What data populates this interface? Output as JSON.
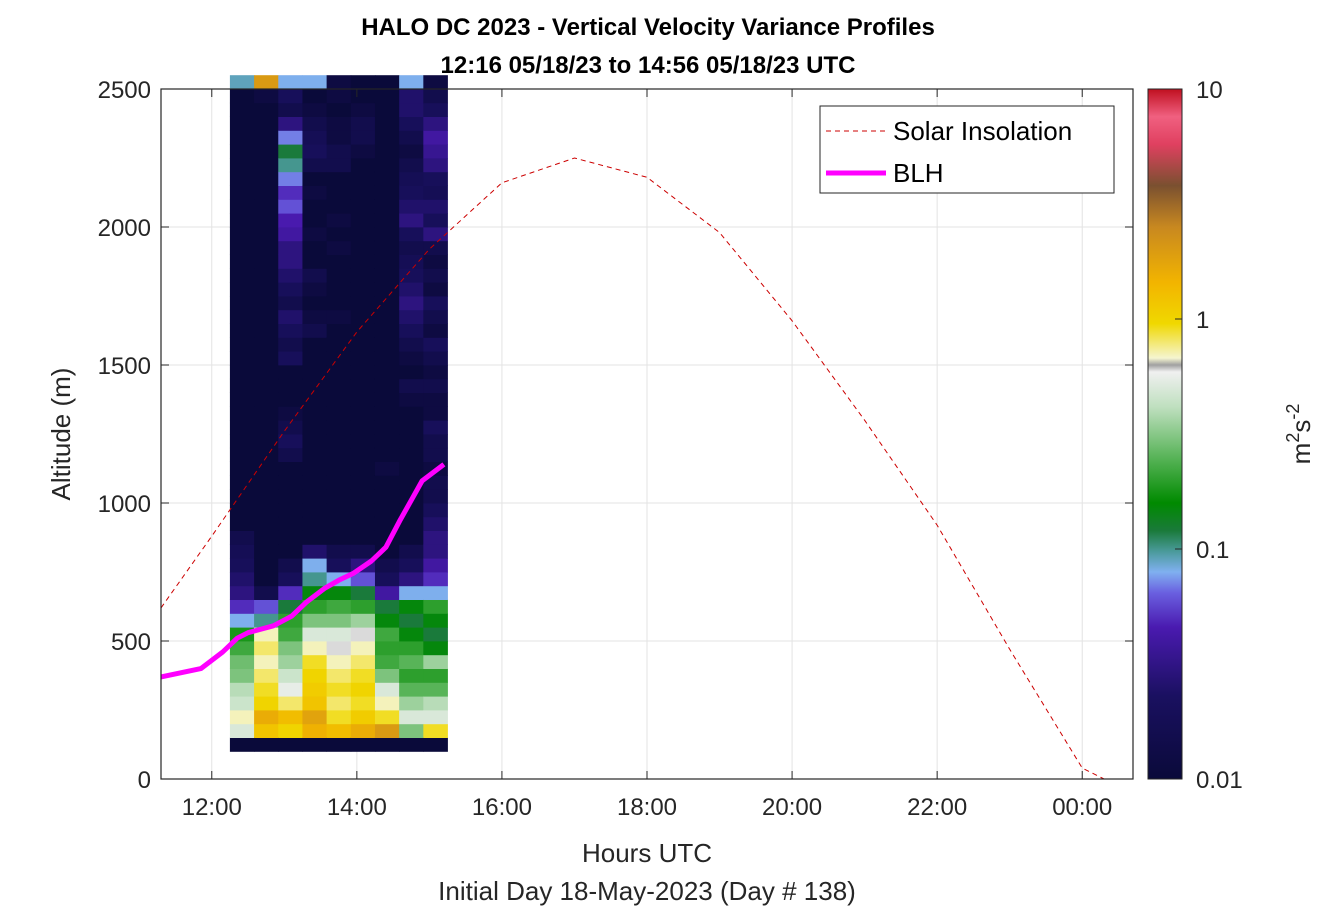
{
  "chart_data": {
    "type": "heatmap",
    "title": "HALO DC 2023 - Vertical Velocity Variance Profiles",
    "subtitle": "12:16 05/18/23 to 14:56 05/18/23  UTC",
    "xlabel": "Hours UTC",
    "xlabel2": "Initial Day 18-May-2023 (Day # 138)",
    "ylabel": "Altitude (m)",
    "xlim_hours": [
      11.3,
      24.7
    ],
    "ylim": [
      0,
      2500
    ],
    "x_ticks": [
      12,
      14,
      16,
      18,
      20,
      22,
      24
    ],
    "x_tick_labels": [
      "12:00",
      "14:00",
      "16:00",
      "18:00",
      "20:00",
      "22:00",
      "00:00"
    ],
    "y_ticks": [
      0,
      500,
      1000,
      1500,
      2000,
      2500
    ],
    "y_tick_labels": [
      "0",
      "500",
      "1000",
      "1500",
      "2000",
      "2500"
    ],
    "grid": true,
    "colorbar": {
      "label_base": "m",
      "label_sup1": "2",
      "label_mid": "s",
      "label_sup2": "-2",
      "scale": "log",
      "range": [
        0.01,
        10
      ],
      "ticks": [
        0.01,
        0.1,
        1,
        10
      ],
      "tick_labels": [
        "0.01",
        "0.1",
        "1",
        "10"
      ]
    },
    "legend": {
      "placement": "top-right",
      "entries": [
        {
          "label": "Solar Insolation",
          "style": "dashed",
          "color": "#cc0000"
        },
        {
          "label": "BLH",
          "style": "solid",
          "color": "#ff00ff"
        }
      ]
    },
    "heatmap": {
      "time_start_hours": 12.25,
      "time_step_hours": 0.3333,
      "alt_start_m": 100,
      "alt_step_m": 50,
      "columns": [
        [
          0.01,
          0.5,
          0.7,
          0.45,
          0.4,
          0.3,
          0.28,
          0.22,
          0.18,
          0.08,
          0.05,
          0.03,
          0.025,
          0.02,
          0.018,
          0.015,
          0.01,
          0.01,
          0.01,
          0.01,
          0.01,
          0.01,
          0.01,
          0.01,
          0.01,
          0.01,
          0.01,
          0.01,
          0.01,
          0.01,
          0.01,
          0.01,
          0.01,
          0.01,
          0.01,
          0.01,
          0.01,
          0.01,
          0.01,
          0.01,
          0.01,
          0.01,
          0.01,
          0.01,
          0.01,
          0.01,
          0.01,
          0.01,
          0.09
        ],
        [
          0.01,
          1.2,
          1.6,
          1.0,
          0.9,
          0.8,
          0.7,
          0.8,
          0.7,
          0.1,
          0.06,
          0.015,
          0.01,
          0.01,
          0.01,
          0.01,
          0.01,
          0.01,
          0.01,
          0.01,
          0.01,
          0.01,
          0.01,
          0.01,
          0.01,
          0.01,
          0.01,
          0.01,
          0.01,
          0.01,
          0.01,
          0.01,
          0.01,
          0.01,
          0.01,
          0.01,
          0.01,
          0.01,
          0.01,
          0.01,
          0.01,
          0.01,
          0.01,
          0.01,
          0.01,
          0.01,
          0.01,
          0.012,
          2.0
        ],
        [
          0.01,
          1.0,
          1.3,
          0.8,
          0.55,
          0.45,
          0.35,
          0.3,
          0.22,
          0.2,
          0.12,
          0.05,
          0.02,
          0.015,
          0.01,
          0.01,
          0.01,
          0.01,
          0.01,
          0.01,
          0.01,
          0.015,
          0.02,
          0.015,
          0.012,
          0.01,
          0.01,
          0.01,
          0.02,
          0.015,
          0.02,
          0.025,
          0.015,
          0.02,
          0.025,
          0.03,
          0.03,
          0.04,
          0.045,
          0.06,
          0.05,
          0.07,
          0.1,
          0.12,
          0.07,
          0.03,
          0.015,
          0.02,
          0.08
        ],
        [
          0.01,
          1.5,
          1.8,
          1.2,
          1.1,
          1.0,
          0.9,
          0.7,
          0.5,
          0.3,
          0.2,
          0.15,
          0.1,
          0.08,
          0.025,
          0.01,
          0.01,
          0.01,
          0.01,
          0.01,
          0.01,
          0.01,
          0.01,
          0.01,
          0.01,
          0.01,
          0.01,
          0.01,
          0.01,
          0.01,
          0.015,
          0.012,
          0.01,
          0.012,
          0.015,
          0.01,
          0.01,
          0.012,
          0.01,
          0.01,
          0.012,
          0.01,
          0.015,
          0.02,
          0.018,
          0.015,
          0.012,
          0.01,
          0.08
        ],
        [
          0.01,
          1.3,
          0.9,
          0.8,
          0.9,
          0.8,
          0.7,
          0.6,
          0.5,
          0.3,
          0.22,
          0.15,
          0.08,
          0.02,
          0.015,
          0.01,
          0.01,
          0.01,
          0.01,
          0.01,
          0.01,
          0.01,
          0.01,
          0.01,
          0.01,
          0.01,
          0.01,
          0.01,
          0.01,
          0.01,
          0.01,
          0.012,
          0.01,
          0.01,
          0.01,
          0.01,
          0.012,
          0.01,
          0.012,
          0.01,
          0.01,
          0.01,
          0.015,
          0.015,
          0.012,
          0.012,
          0.01,
          0.012,
          0.012
        ],
        [
          0.01,
          1.6,
          1.1,
          0.9,
          1.0,
          0.9,
          0.8,
          0.7,
          0.6,
          0.35,
          0.2,
          0.12,
          0.06,
          0.03,
          0.015,
          0.01,
          0.01,
          0.01,
          0.01,
          0.01,
          0.01,
          0.01,
          0.01,
          0.01,
          0.01,
          0.01,
          0.01,
          0.01,
          0.01,
          0.01,
          0.01,
          0.01,
          0.01,
          0.01,
          0.01,
          0.01,
          0.01,
          0.01,
          0.01,
          0.01,
          0.01,
          0.01,
          0.01,
          0.012,
          0.015,
          0.015,
          0.012,
          0.01,
          0.01
        ],
        [
          0.01,
          2.0,
          0.9,
          0.7,
          0.5,
          0.3,
          0.22,
          0.2,
          0.22,
          0.15,
          0.12,
          0.04,
          0.02,
          0.015,
          0.01,
          0.01,
          0.01,
          0.01,
          0.01,
          0.01,
          0.012,
          0.01,
          0.01,
          0.01,
          0.01,
          0.01,
          0.01,
          0.01,
          0.01,
          0.01,
          0.01,
          0.01,
          0.01,
          0.01,
          0.01,
          0.01,
          0.01,
          0.01,
          0.01,
          0.01,
          0.01,
          0.01,
          0.01,
          0.01,
          0.01,
          0.01,
          0.01,
          0.01,
          0.01
        ],
        [
          0.01,
          0.3,
          0.5,
          0.35,
          0.25,
          0.2,
          0.25,
          0.2,
          0.15,
          0.12,
          0.15,
          0.08,
          0.03,
          0.02,
          0.015,
          0.01,
          0.01,
          0.01,
          0.01,
          0.01,
          0.01,
          0.01,
          0.01,
          0.01,
          0.01,
          0.012,
          0.015,
          0.01,
          0.012,
          0.015,
          0.02,
          0.025,
          0.03,
          0.025,
          0.02,
          0.018,
          0.015,
          0.02,
          0.03,
          0.025,
          0.02,
          0.018,
          0.015,
          0.012,
          0.015,
          0.02,
          0.025,
          0.025,
          0.08
        ],
        [
          0.01,
          0.9,
          0.5,
          0.4,
          0.25,
          0.2,
          0.35,
          0.15,
          0.12,
          0.15,
          0.2,
          0.08,
          0.05,
          0.04,
          0.03,
          0.03,
          0.025,
          0.02,
          0.015,
          0.015,
          0.012,
          0.015,
          0.015,
          0.02,
          0.012,
          0.012,
          0.015,
          0.012,
          0.015,
          0.02,
          0.012,
          0.015,
          0.02,
          0.012,
          0.015,
          0.012,
          0.015,
          0.03,
          0.02,
          0.025,
          0.018,
          0.02,
          0.03,
          0.035,
          0.04,
          0.03,
          0.02,
          0.015,
          0.012
        ]
      ]
    },
    "solar_insolation": {
      "x_hours": [
        11.3,
        12.0,
        13.0,
        14.0,
        15.0,
        16.0,
        17.0,
        18.0,
        19.0,
        20.0,
        21.0,
        22.0,
        23.0,
        24.0,
        24.3,
        24.7
      ],
      "y_m": [
        620,
        880,
        1260,
        1620,
        1920,
        2160,
        2250,
        2180,
        1980,
        1660,
        1300,
        920,
        470,
        40,
        0,
        0
      ]
    },
    "blh": {
      "x_hours": [
        11.3,
        11.85,
        12.15,
        12.35,
        12.5,
        12.85,
        13.1,
        13.3,
        13.55,
        13.75,
        13.95,
        14.2,
        14.4,
        14.6,
        14.75,
        14.9,
        15.2
      ],
      "y_m": [
        370,
        400,
        460,
        510,
        530,
        555,
        590,
        640,
        690,
        720,
        745,
        790,
        840,
        940,
        1010,
        1080,
        1140
      ]
    }
  }
}
